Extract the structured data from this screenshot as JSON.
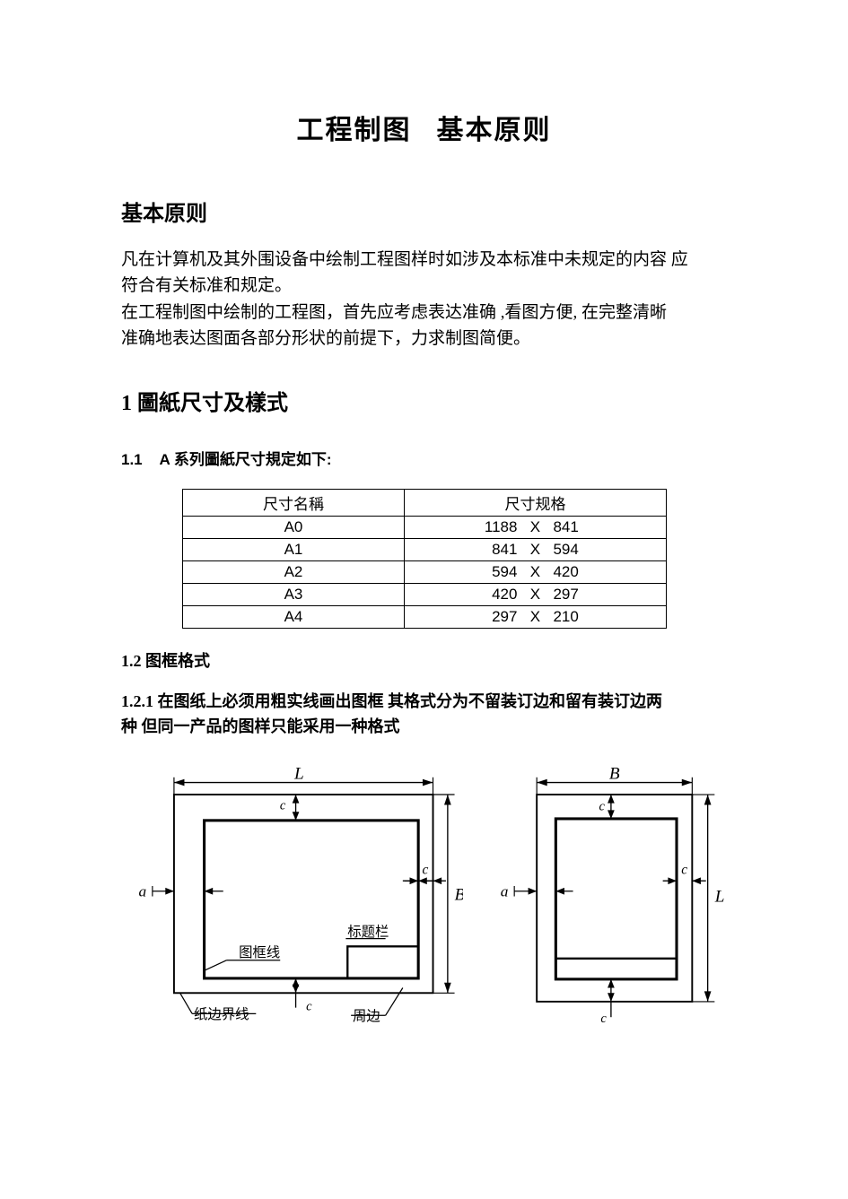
{
  "title": {
    "part1": "工程制图",
    "part2": "基本原则"
  },
  "heading_basic": "基本原则",
  "para1_line1": "凡在计算机及其外围设备中绘制工程图样时如涉及本标准中未规定的内容 应",
  "para1_line2": "符合有关标准和规定。",
  "para1_line3": "在工程制图中绘制的工程图，首先应考虑表达准确 ,看图方便,  在完整清晰",
  "para1_line4": "准确地表达图面各部分形状的前提下，力求制图简便。",
  "section1_heading": "1  圖紙尺寸及樣式",
  "sub11_num": "1.1",
  "sub11_text": "A 系列圖紙尺寸規定如下:",
  "table": {
    "head_name": "尺寸名稱",
    "head_spec": "尺寸规格",
    "rows": [
      {
        "name": "A0",
        "w": "1188",
        "h": "841"
      },
      {
        "name": "A1",
        "w": "841",
        "h": "594"
      },
      {
        "name": "A2",
        "w": "594",
        "h": "420"
      },
      {
        "name": "A3",
        "w": "420",
        "h": "297"
      },
      {
        "name": "A4",
        "w": "297",
        "h": "210"
      }
    ],
    "sep": "X"
  },
  "sub12": "1.2 图框格式",
  "sub121_line1": "  1.2.1 在图纸上必须用粗实线画出图框 其格式分为不留装订边和留有装订边两",
  "sub121_line2": "种 但同一产品的图样只能采用一种格式",
  "diagram": {
    "labels": {
      "L": "L",
      "B": "B",
      "a": "a",
      "c": "c",
      "frame_line": "图框线",
      "title_block": "标题栏",
      "edge_line": "纸边界线",
      "margin": "周边"
    },
    "colors": {
      "stroke": "#000000",
      "bg": "#ffffff"
    },
    "stroke_thick": 3,
    "stroke_med": 2,
    "stroke_thin": 1.2,
    "font_label_cn": 16,
    "font_label_it": 18,
    "font_label_sm": 13
  }
}
